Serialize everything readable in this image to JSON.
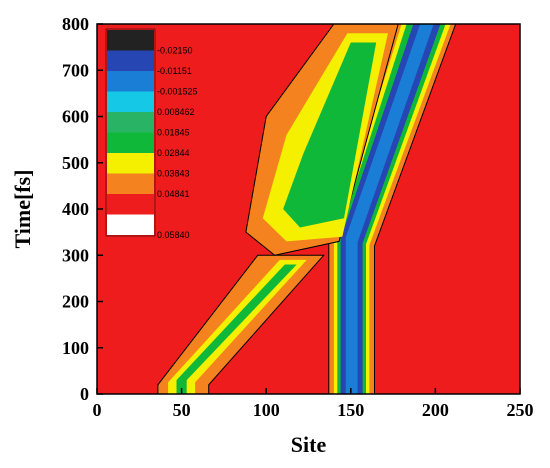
{
  "chart_data": {
    "type": "heatmap",
    "title": "",
    "xlabel": "Site",
    "ylabel": "Time[fs]",
    "xlim": [
      0,
      250
    ],
    "ylim": [
      0,
      800
    ],
    "x_ticks": [
      0,
      50,
      100,
      150,
      200,
      250
    ],
    "y_ticks": [
      0,
      100,
      200,
      300,
      400,
      500,
      600,
      700,
      800
    ],
    "grid": false,
    "legend_position": "top-left",
    "background_color": "#ee1c1c",
    "color_levels": [
      {
        "label": "-0.02150",
        "color": "#222222"
      },
      {
        "label": "-0.01151",
        "color": "#2646b4"
      },
      {
        "label": "-0.001525",
        "color": "#1a7ed6"
      },
      {
        "label": "0.008462",
        "color": "#14c8e6"
      },
      {
        "label": "0.01845",
        "color": "#28b464"
      },
      {
        "label": "0.02844",
        "color": "#10b83a"
      },
      {
        "label": "0.03843",
        "color": "#f4f000"
      },
      {
        "label": "0.04841",
        "color": "#f4821e"
      },
      {
        "label": "",
        "color": "#ee1c1c"
      },
      {
        "label": "0.05840",
        "color": "#ffffff"
      }
    ],
    "bands": [
      {
        "name": "diagonal-wavepacket",
        "layers": [
          {
            "color": "#f4821e",
            "outline": "#000000",
            "points": [
              [
                36,
                0
              ],
              [
                66,
                0
              ],
              [
                66,
                20
              ],
              [
                134,
                300
              ],
              [
                95,
                300
              ],
              [
                36,
                20
              ]
            ]
          },
          {
            "color": "#f4f000",
            "points": [
              [
                42,
                0
              ],
              [
                58,
                0
              ],
              [
                58,
                25
              ],
              [
                124,
                290
              ],
              [
                108,
                290
              ],
              [
                42,
                25
              ]
            ]
          },
          {
            "color": "#10b83a",
            "points": [
              [
                47,
                0
              ],
              [
                53,
                0
              ],
              [
                53,
                30
              ],
              [
                118,
                280
              ],
              [
                111,
                280
              ],
              [
                47,
                30
              ]
            ]
          }
        ]
      },
      {
        "name": "vertical-then-diagonal-band",
        "layers": [
          {
            "color": "#f4821e",
            "outline": "#000000",
            "points": [
              [
                137,
                0
              ],
              [
                164,
                0
              ],
              [
                164,
                320
              ],
              [
                212,
                800
              ],
              [
                174,
                800
              ],
              [
                137,
                330
              ]
            ]
          },
          {
            "color": "#f4f000",
            "points": [
              [
                140,
                0
              ],
              [
                161,
                0
              ],
              [
                161,
                322
              ],
              [
                209,
                800
              ],
              [
                180,
                800
              ],
              [
                140,
                332
              ]
            ]
          },
          {
            "color": "#10b83a",
            "points": [
              [
                142,
                0
              ],
              [
                159,
                0
              ],
              [
                159,
                324
              ],
              [
                206,
                800
              ],
              [
                183,
                800
              ],
              [
                142,
                334
              ]
            ]
          },
          {
            "color": "#2646b4",
            "points": [
              [
                144,
                0
              ],
              [
                157,
                0
              ],
              [
                157,
                326
              ],
              [
                203,
                800
              ],
              [
                187,
                800
              ],
              [
                144,
                336
              ]
            ]
          },
          {
            "color": "#1a7ed6",
            "points": [
              [
                147,
                0
              ],
              [
                154,
                0
              ],
              [
                154,
                328
              ],
              [
                199,
                800
              ],
              [
                191,
                800
              ],
              [
                147,
                338
              ]
            ]
          }
        ]
      },
      {
        "name": "scattered-region",
        "layers": [
          {
            "color": "#f4821e",
            "outline": "#000000",
            "points": [
              [
                105,
                300
              ],
              [
                143,
                330
              ],
              [
                178,
                800
              ],
              [
                140,
                800
              ],
              [
                100,
                600
              ],
              [
                88,
                350
              ]
            ]
          },
          {
            "color": "#f4f000",
            "points": [
              [
                112,
                330
              ],
              [
                145,
                340
              ],
              [
                172,
                780
              ],
              [
                148,
                780
              ],
              [
                112,
                560
              ],
              [
                98,
                380
              ]
            ]
          },
          {
            "color": "#10b83a",
            "points": [
              [
                120,
                360
              ],
              [
                146,
                380
              ],
              [
                165,
                760
              ],
              [
                150,
                760
              ],
              [
                122,
                520
              ],
              [
                110,
                400
              ]
            ]
          }
        ]
      }
    ]
  }
}
